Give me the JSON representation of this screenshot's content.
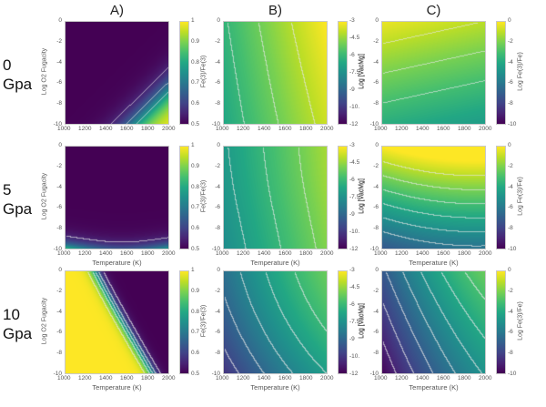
{
  "figure": {
    "column_titles": [
      "A)",
      "B)",
      "C)"
    ],
    "row_labels": [
      {
        "pressure": "0",
        "unit": "Gpa"
      },
      {
        "pressure": "5",
        "unit": "Gpa"
      },
      {
        "pressure": "10",
        "unit": "Gpa"
      }
    ]
  },
  "chart_data": [
    {
      "type": "heatmap",
      "id": "A-0",
      "column": "A)",
      "row": "0 Gpa",
      "xlabel": "",
      "ylabel": "Log O2 Fugacity",
      "ylabel_sub": "2",
      "xlim": [
        1000,
        2000
      ],
      "ylim": [
        -10,
        0
      ],
      "xticks": [
        "1000",
        "1200",
        "1400",
        "1600",
        "1800",
        "2000"
      ],
      "yticks": [
        "0",
        "-2",
        "-4",
        "-6",
        "-8",
        "-10"
      ],
      "colorbar": {
        "label": "Fe(3)/Fe(3)",
        "range": [
          0.5,
          1
        ],
        "ticks": [
          "1",
          "0.9",
          "0.8",
          "0.7",
          "0.6",
          "0.5"
        ]
      },
      "contour_levels": [
        "0.55",
        "0.65",
        "0.75"
      ],
      "model": "A0"
    },
    {
      "type": "heatmap",
      "id": "B-0",
      "column": "B)",
      "row": "0 Gpa",
      "xlabel": "",
      "ylabel": "",
      "xlim": [
        1000,
        2000
      ],
      "ylim": [
        -10,
        0
      ],
      "xticks": [
        "1000",
        "1200",
        "1400",
        "1600",
        "1800",
        "2000"
      ],
      "yticks": [
        "0",
        "-2",
        "-4",
        "-6",
        "-8",
        "-10"
      ],
      "colorbar": {
        "label": "Log [VacMg]",
        "range": [
          -12,
          -3
        ],
        "ticks": [
          "-3",
          "-4.5",
          "-6",
          "-7.5",
          "-9",
          "-10.",
          "-12"
        ]
      },
      "contour_levels": [
        "-6",
        "-5",
        "-4"
      ],
      "model": "B0"
    },
    {
      "type": "heatmap",
      "id": "C-0",
      "column": "C)",
      "row": "0 Gpa",
      "xlabel": "",
      "ylabel": "Log [VacMg]",
      "xlim": [
        1000,
        2000
      ],
      "ylim": [
        -10,
        0
      ],
      "xticks": [
        "1000",
        "1200",
        "1400",
        "1600",
        "1800",
        "2000"
      ],
      "yticks": [
        "0",
        "-2",
        "-4",
        "-6",
        "-8",
        "-10"
      ],
      "colorbar": {
        "label": "Log Fe(3)/Fe)",
        "range": [
          -10,
          0
        ],
        "ticks": [
          "0",
          "-2",
          "-4",
          "-6",
          "-8",
          "-10"
        ]
      },
      "contour_levels": [
        "-1",
        "-2",
        "-3"
      ],
      "model": "C0"
    },
    {
      "type": "heatmap",
      "id": "A-5",
      "column": "A)",
      "row": "5 Gpa",
      "xlabel": "Temperature (K)",
      "ylabel": "Log O2 Fugacity",
      "ylabel_sub": "2",
      "xlim": [
        1000,
        2000
      ],
      "ylim": [
        -10,
        0
      ],
      "xticks": [
        "1000",
        "1200",
        "1400",
        "1600",
        "1800",
        "2000"
      ],
      "yticks": [
        "0",
        "-2",
        "-4",
        "-6",
        "-8",
        "-10"
      ],
      "colorbar": {
        "label": "Fe(3)/Fe(3)",
        "range": [
          0.5,
          1
        ],
        "ticks": [
          "1",
          "0.9",
          "0.8",
          "0.7",
          "0.6",
          "0.5"
        ]
      },
      "contour_levels": [
        "0.55",
        "0.55"
      ],
      "model": "A5"
    },
    {
      "type": "heatmap",
      "id": "B-5",
      "column": "B)",
      "row": "5 Gpa",
      "xlabel": "Temperature (K)",
      "ylabel": "",
      "xlim": [
        1000,
        2000
      ],
      "ylim": [
        -10,
        0
      ],
      "xticks": [
        "1000",
        "1200",
        "1400",
        "1600",
        "1800",
        "2000"
      ],
      "yticks": [
        "0",
        "-2",
        "-4",
        "-6",
        "-8",
        "-10"
      ],
      "colorbar": {
        "label": "Log [VacMg]",
        "range": [
          -12,
          -3
        ],
        "ticks": [
          "-3",
          "-4.5",
          "-6",
          "-7.5",
          "-9",
          "-10.",
          "-12"
        ]
      },
      "contour_levels": [
        "-7",
        "-6",
        "-5"
      ],
      "model": "B5"
    },
    {
      "type": "heatmap",
      "id": "C-5",
      "column": "C)",
      "row": "5 Gpa",
      "xlabel": "Temperature (K)",
      "ylabel": "Log [VacMg]",
      "xlim": [
        1000,
        2000
      ],
      "ylim": [
        -10,
        0
      ],
      "xticks": [
        "1000",
        "1200",
        "1400",
        "1600",
        "1800",
        "2000"
      ],
      "yticks": [
        "0",
        "-2",
        "-4",
        "-6",
        "-8",
        "-10"
      ],
      "colorbar": {
        "label": "Log Fe(3)/Fe)",
        "range": [
          -10,
          0
        ],
        "ticks": [
          "0",
          "-2",
          "-4",
          "-6",
          "-8",
          "-10"
        ]
      },
      "contour_levels": [
        "-1",
        "-2",
        "-3",
        "-4",
        "-5",
        "-6"
      ],
      "model": "C5"
    },
    {
      "type": "heatmap",
      "id": "A-10",
      "column": "A)",
      "row": "10 Gpa",
      "xlabel": "Temperature (K)",
      "ylabel": "Log O2 Fugacity",
      "ylabel_sub": "2",
      "xlim": [
        1000,
        2000
      ],
      "ylim": [
        -10,
        0
      ],
      "xticks": [
        "1000",
        "1200",
        "1400",
        "1600",
        "1800",
        "2000"
      ],
      "yticks": [
        "0",
        "-2",
        "-4",
        "-6",
        "-8",
        "-10"
      ],
      "colorbar": {
        "label": "Fe(3)/Fe(3)",
        "range": [
          0.5,
          1
        ],
        "ticks": [
          "1",
          "0.9",
          "0.8",
          "0.7",
          "0.6",
          "0.5"
        ]
      },
      "contour_levels": [
        "0.55",
        "0.65",
        "0.75",
        "0.85",
        "0.95"
      ],
      "model": "A10"
    },
    {
      "type": "heatmap",
      "id": "B-10",
      "column": "B)",
      "row": "10 Gpa",
      "xlabel": "Temperature (K)",
      "ylabel": "",
      "xlim": [
        1000,
        2000
      ],
      "ylim": [
        -10,
        0
      ],
      "xticks": [
        "1000",
        "1200",
        "1400",
        "1600",
        "1800",
        "2000"
      ],
      "yticks": [
        "0",
        "-2",
        "-4",
        "-6",
        "-8",
        "-10"
      ],
      "colorbar": {
        "label": "Log [VacMg]",
        "range": [
          -12,
          -3
        ],
        "ticks": [
          "-3",
          "-4.5",
          "-6",
          "-7.5",
          "-9",
          "-10.",
          "-12"
        ]
      },
      "contour_levels": [
        "-10",
        "-9",
        "-8",
        "-7",
        "-6"
      ],
      "model": "B10"
    },
    {
      "type": "heatmap",
      "id": "C-10",
      "column": "C)",
      "row": "10 Gpa",
      "xlabel": "Temperature (K)",
      "ylabel": "Log [VacMg]",
      "xlim": [
        1000,
        2000
      ],
      "ylim": [
        -10,
        0
      ],
      "xticks": [
        "1000",
        "1200",
        "1400",
        "1600",
        "1800",
        "2000"
      ],
      "yticks": [
        "0",
        "-2",
        "-4",
        "-6",
        "-8",
        "-10"
      ],
      "colorbar": {
        "label": "Log Fe(3)/Fe)",
        "range": [
          -10,
          0
        ],
        "ticks": [
          "0",
          "-2",
          "-4",
          "-6",
          "-8",
          "-10"
        ]
      },
      "contour_levels": [
        "-9",
        "-8",
        "-7",
        "-6",
        "-5",
        "-4",
        "-3",
        "-2"
      ],
      "model": "C10"
    }
  ]
}
